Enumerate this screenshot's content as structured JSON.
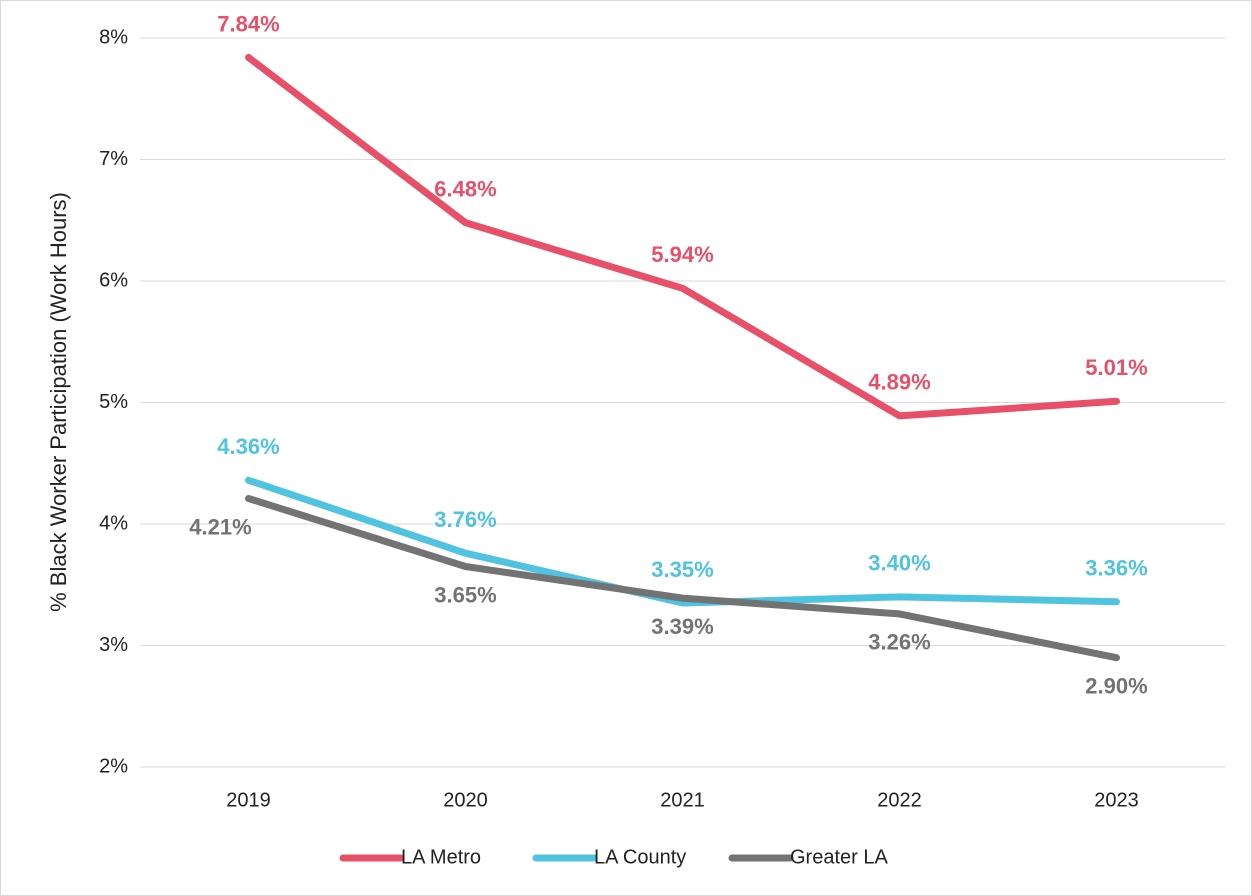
{
  "chart_data": {
    "type": "line",
    "y_label": "% Black Worker Participation (Work Hours)",
    "categories": [
      "2019",
      "2020",
      "2021",
      "2022",
      "2023"
    ],
    "series": [
      {
        "name": "LA Metro",
        "color": "#e8506a",
        "values": [
          7.84,
          6.48,
          5.94,
          4.89,
          5.01
        ],
        "value_labels": [
          "7.84%",
          "6.48%",
          "5.94%",
          "4.89%",
          "5.01%"
        ]
      },
      {
        "name": "LA County",
        "color": "#4fc3e0",
        "values": [
          4.36,
          3.76,
          3.35,
          3.4,
          3.36
        ],
        "value_labels": [
          "4.36%",
          "3.76%",
          "3.35%",
          "3.40%",
          "3.36%"
        ]
      },
      {
        "name": "Greater LA",
        "color": "#737373",
        "values": [
          4.21,
          3.65,
          3.39,
          3.26,
          2.9
        ],
        "value_labels": [
          "4.21%",
          "3.65%",
          "3.39%",
          "3.26%",
          "2.90%"
        ]
      }
    ],
    "ylim": [
      2,
      8
    ],
    "yticks": [
      {
        "value": 2,
        "label": "2%"
      },
      {
        "value": 3,
        "label": "3%"
      },
      {
        "value": 4,
        "label": "4%"
      },
      {
        "value": 5,
        "label": "5%"
      },
      {
        "value": 6,
        "label": "6%"
      },
      {
        "value": 7,
        "label": "7%"
      },
      {
        "value": 8,
        "label": "8%"
      }
    ],
    "grid": true,
    "legend": "bottom"
  }
}
